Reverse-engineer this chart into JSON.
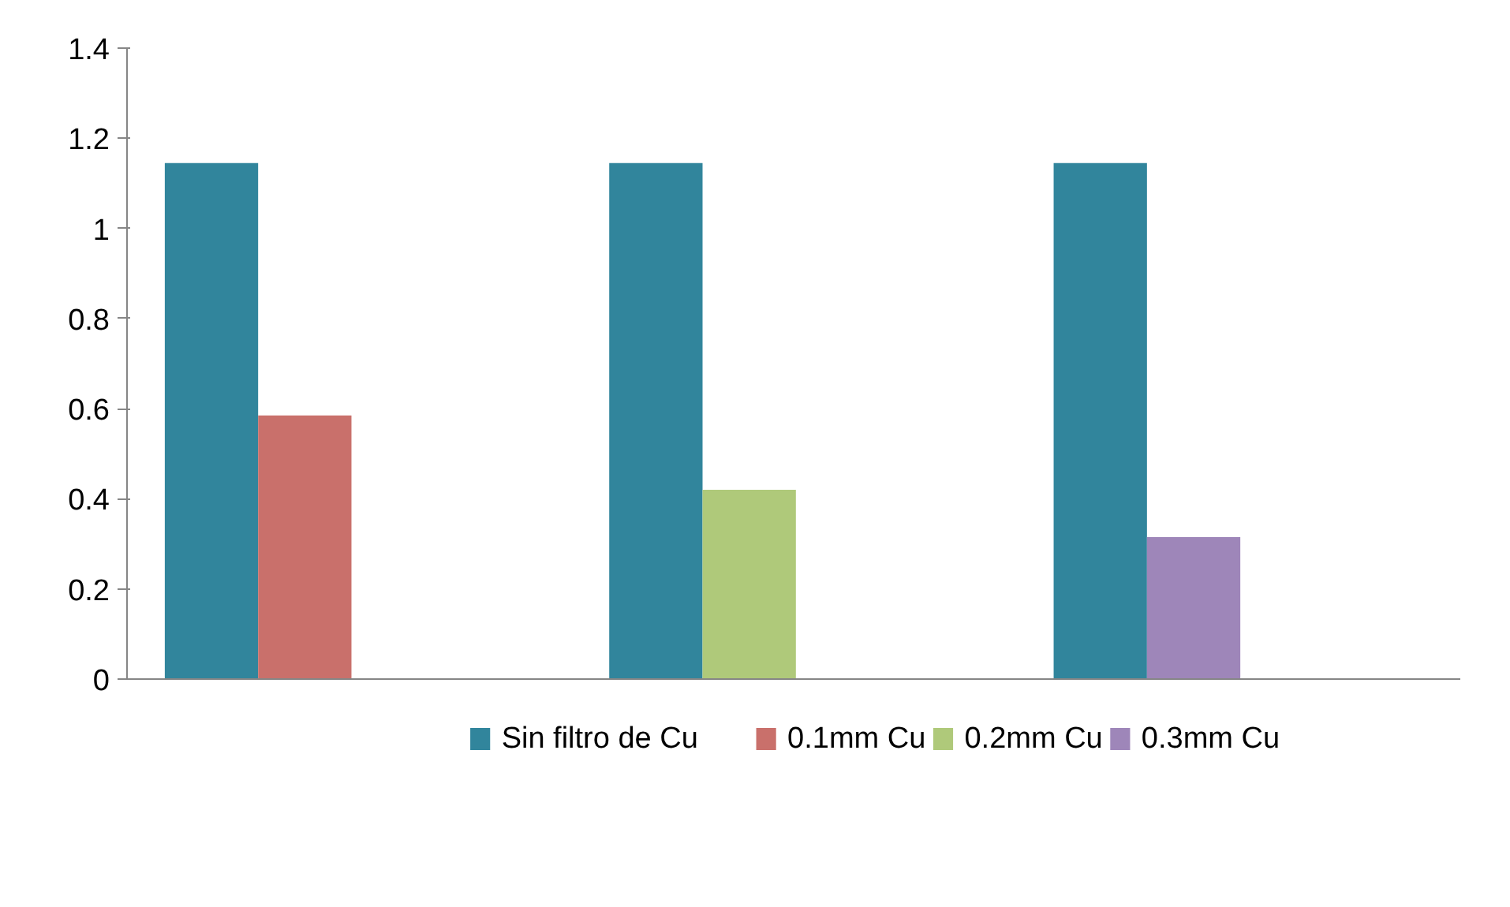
{
  "chart_data": {
    "type": "bar",
    "categories": [
      null,
      null,
      null
    ],
    "series": [
      {
        "name": "Sin filtro de Cu",
        "color": "#31859c",
        "values": [
          1.145,
          1.145,
          1.145
        ]
      },
      {
        "name": "0.1mm Cu",
        "color": "#c9706b",
        "values": [
          0.585,
          null,
          null
        ]
      },
      {
        "name": "0.2mm Cu",
        "color": "#afc97a",
        "values": [
          null,
          0.42,
          null
        ]
      },
      {
        "name": "0.3mm Cu",
        "color": "#9e86b9",
        "values": [
          null,
          null,
          0.315
        ]
      }
    ],
    "ylim": [
      0,
      1.4
    ],
    "yticks": [
      0,
      0.2,
      0.4,
      0.6,
      0.8,
      1,
      1.2,
      1.4
    ],
    "grid": false,
    "legend": "bottom"
  }
}
